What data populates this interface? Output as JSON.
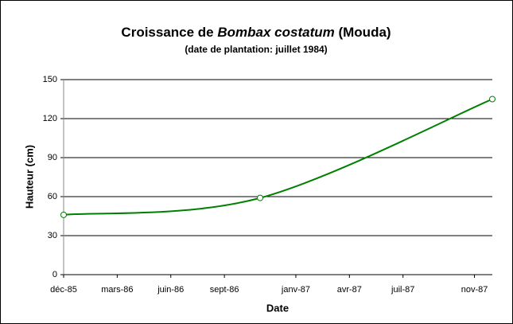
{
  "chart_data": {
    "type": "line",
    "title": [
      "Croissance de ",
      "Bombax costatum",
      " (Mouda)"
    ],
    "subtitle": "(date de plantation: juillet 1984)",
    "y_label": "Hauteur (cm)",
    "x_label": "Date",
    "x": [
      "1985-12",
      "1986-11",
      "1987-12"
    ],
    "series": [
      {
        "name": "Hauteur",
        "color": "#008000",
        "values": [
          46,
          59,
          135
        ]
      }
    ],
    "xlim": [
      "1985-12",
      "1987-12"
    ],
    "xticks": [
      {
        "value": "1985-12",
        "label": "déc-85"
      },
      {
        "value": "1986-03",
        "label": "mars-86"
      },
      {
        "value": "1986-06",
        "label": "juin-86"
      },
      {
        "value": "1986-09",
        "label": "sept-86"
      },
      {
        "value": "1987-01",
        "label": "janv-87"
      },
      {
        "value": "1987-04",
        "label": "avr-87"
      },
      {
        "value": "1987-07",
        "label": "juil-87"
      },
      {
        "value": "1987-11",
        "label": "nov-87"
      }
    ],
    "ylim": [
      0,
      150
    ],
    "yticks": [
      0,
      30,
      60,
      90,
      120,
      150
    ],
    "grid": true
  }
}
